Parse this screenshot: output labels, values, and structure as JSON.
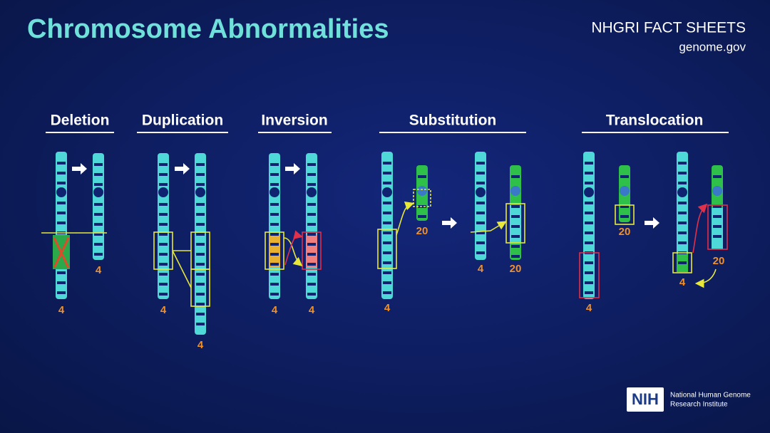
{
  "header": {
    "title": "Chromosome Abnormalities",
    "source": "NHGRI FACT SHEETS",
    "url": "genome.gov"
  },
  "panels": [
    {
      "title": "Deletion",
      "labels": [
        "4",
        "4"
      ]
    },
    {
      "title": "Duplication",
      "labels": [
        "4",
        "4"
      ]
    },
    {
      "title": "Inversion",
      "labels": [
        "4",
        "4"
      ]
    },
    {
      "title": "Substitution",
      "labels": [
        "4",
        "20",
        "4",
        "20"
      ]
    },
    {
      "title": "Translocation",
      "labels": [
        "4",
        "20",
        "4",
        "20"
      ]
    }
  ],
  "footer": {
    "logo": "NIH",
    "institute_line1": "National Human Genome",
    "institute_line2": "Research Institute"
  }
}
